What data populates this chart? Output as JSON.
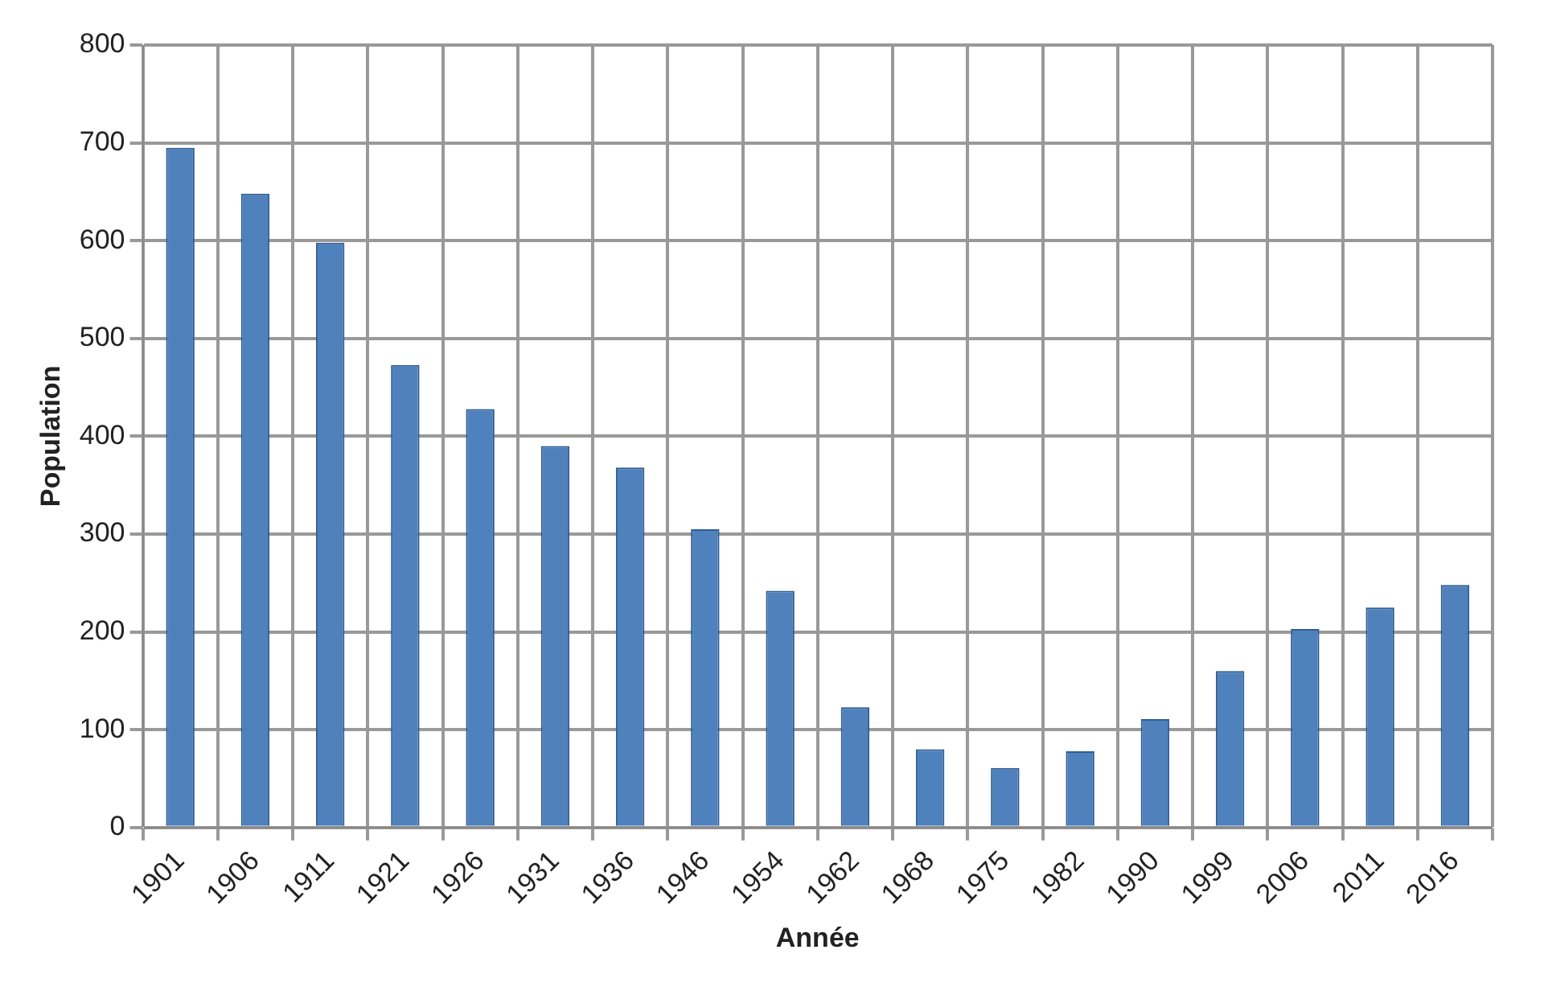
{
  "chart_data": {
    "type": "bar",
    "xlabel": "Année",
    "ylabel": "Population",
    "categories": [
      "1901",
      "1906",
      "1911",
      "1921",
      "1926",
      "1931",
      "1936",
      "1946",
      "1954",
      "1962",
      "1968",
      "1975",
      "1982",
      "1990",
      "1999",
      "2006",
      "2011",
      "2016"
    ],
    "values": [
      695,
      648,
      598,
      473,
      428,
      390,
      368,
      305,
      242,
      123,
      80,
      61,
      78,
      111,
      160,
      203,
      225,
      248
    ],
    "color": "#4f81bd",
    "ylim": [
      0,
      800
    ],
    "yticks": [
      0,
      100,
      200,
      300,
      400,
      500,
      600,
      700,
      800
    ],
    "grid": true
  }
}
